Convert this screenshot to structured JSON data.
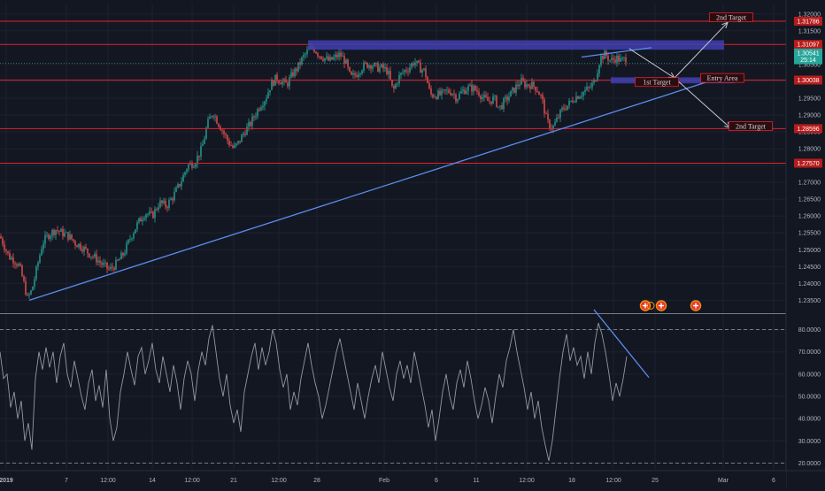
{
  "chart_data": [
    {
      "type": "candlestick",
      "ylim": [
        1.232,
        1.322
      ],
      "x_ticks": [
        "2019",
        "7",
        "12:00",
        "14",
        "12:00",
        "21",
        "12:00",
        "28",
        "Feb",
        "6",
        "11",
        "12:00",
        "18",
        "12:00",
        "25",
        "Mar",
        "6"
      ],
      "y_ticks": [
        "1.32000",
        "1.31500",
        "1.30500",
        "1.30000",
        "1.29500",
        "1.29000",
        "1.28500",
        "1.28000",
        "1.27500",
        "1.27000",
        "1.26500",
        "1.26000",
        "1.25500",
        "1.25000",
        "1.24500",
        "1.24000",
        "1.23500"
      ],
      "current_price": "1.30541",
      "countdown": "25:14",
      "price_path": [
        [
          0,
          1.254
        ],
        [
          5,
          1.251
        ],
        [
          10,
          1.248
        ],
        [
          16,
          1.247
        ],
        [
          22,
          1.245
        ],
        [
          27,
          1.24
        ],
        [
          31,
          1.2355
        ],
        [
          36,
          1.238
        ],
        [
          42,
          1.245
        ],
        [
          48,
          1.252
        ],
        [
          55,
          1.2545
        ],
        [
          63,
          1.256
        ],
        [
          70,
          1.255
        ],
        [
          78,
          1.254
        ],
        [
          85,
          1.252
        ],
        [
          92,
          1.251
        ],
        [
          100,
          1.249
        ],
        [
          108,
          1.2475
        ],
        [
          116,
          1.2455
        ],
        [
          124,
          1.244
        ],
        [
          132,
          1.246
        ],
        [
          140,
          1.249
        ],
        [
          148,
          1.254
        ],
        [
          156,
          1.258
        ],
        [
          164,
          1.261
        ],
        [
          172,
          1.26
        ],
        [
          180,
          1.264
        ],
        [
          188,
          1.263
        ],
        [
          196,
          1.266
        ],
        [
          204,
          1.27
        ],
        [
          212,
          1.275
        ],
        [
          220,
          1.276
        ],
        [
          228,
          1.28
        ],
        [
          234,
          1.287
        ],
        [
          240,
          1.291
        ],
        [
          246,
          1.288
        ],
        [
          252,
          1.285
        ],
        [
          258,
          1.282
        ],
        [
          264,
          1.28
        ],
        [
          270,
          1.282
        ],
        [
          276,
          1.285
        ],
        [
          282,
          1.287
        ],
        [
          288,
          1.29
        ],
        [
          294,
          1.293
        ],
        [
          300,
          1.295
        ],
        [
          306,
          1.299
        ],
        [
          312,
          1.301
        ],
        [
          318,
          1.3
        ],
        [
          324,
          1.299
        ],
        [
          330,
          1.302
        ],
        [
          336,
          1.304
        ],
        [
          342,
          1.307
        ],
        [
          348,
          1.309
        ],
        [
          354,
          1.31
        ],
        [
          360,
          1.308
        ],
        [
          366,
          1.307
        ],
        [
          372,
          1.306
        ],
        [
          378,
          1.307
        ],
        [
          384,
          1.308
        ],
        [
          390,
          1.306
        ],
        [
          396,
          1.301
        ],
        [
          402,
          1.302
        ],
        [
          408,
          1.304
        ],
        [
          414,
          1.305
        ],
        [
          420,
          1.305
        ],
        [
          426,
          1.304
        ],
        [
          432,
          1.304
        ],
        [
          438,
          1.303
        ],
        [
          444,
          1.297
        ],
        [
          450,
          1.301
        ],
        [
          456,
          1.303
        ],
        [
          462,
          1.304
        ],
        [
          468,
          1.306
        ],
        [
          474,
          1.304
        ],
        [
          480,
          1.303
        ],
        [
          486,
          1.296
        ],
        [
          492,
          1.296
        ],
        [
          498,
          1.296
        ],
        [
          504,
          1.297
        ],
        [
          510,
          1.297
        ],
        [
          516,
          1.295
        ],
        [
          522,
          1.297
        ],
        [
          528,
          1.298
        ],
        [
          534,
          1.298
        ],
        [
          540,
          1.297
        ],
        [
          546,
          1.295
        ],
        [
          552,
          1.294
        ],
        [
          558,
          1.295
        ],
        [
          564,
          1.292
        ],
        [
          570,
          1.294
        ],
        [
          576,
          1.296
        ],
        [
          582,
          1.298
        ],
        [
          588,
          1.3
        ],
        [
          594,
          1.299
        ],
        [
          600,
          1.299
        ],
        [
          606,
          1.298
        ],
        [
          612,
          1.295
        ],
        [
          618,
          1.288
        ],
        [
          624,
          1.286
        ],
        [
          630,
          1.289
        ],
        [
          636,
          1.292
        ],
        [
          642,
          1.293
        ],
        [
          648,
          1.295
        ],
        [
          654,
          1.296
        ],
        [
          660,
          1.297
        ],
        [
          666,
          1.298
        ],
        [
          672,
          1.3
        ],
        [
          678,
          1.307
        ],
        [
          684,
          1.308
        ],
        [
          690,
          1.306
        ],
        [
          696,
          1.307
        ],
        [
          702,
          1.306
        ],
        [
          708,
          1.307
        ]
      ],
      "osc_path": [
        [
          0,
          70
        ],
        [
          4,
          58
        ],
        [
          8,
          60
        ],
        [
          12,
          45
        ],
        [
          16,
          52
        ],
        [
          20,
          40
        ],
        [
          24,
          48
        ],
        [
          28,
          30
        ],
        [
          32,
          38
        ],
        [
          36,
          26
        ],
        [
          40,
          58
        ],
        [
          44,
          70
        ],
        [
          48,
          62
        ],
        [
          52,
          72
        ],
        [
          56,
          63
        ],
        [
          60,
          70
        ],
        [
          64,
          56
        ],
        [
          68,
          68
        ],
        [
          72,
          74
        ],
        [
          76,
          60
        ],
        [
          80,
          54
        ],
        [
          84,
          66
        ],
        [
          88,
          58
        ],
        [
          92,
          50
        ],
        [
          96,
          44
        ],
        [
          100,
          56
        ],
        [
          104,
          62
        ],
        [
          108,
          48
        ],
        [
          112,
          55
        ],
        [
          116,
          45
        ],
        [
          120,
          62
        ],
        [
          124,
          40
        ],
        [
          128,
          30
        ],
        [
          132,
          36
        ],
        [
          136,
          52
        ],
        [
          140,
          60
        ],
        [
          144,
          70
        ],
        [
          148,
          62
        ],
        [
          152,
          55
        ],
        [
          156,
          68
        ],
        [
          160,
          72
        ],
        [
          164,
          60
        ],
        [
          168,
          66
        ],
        [
          172,
          74
        ],
        [
          176,
          62
        ],
        [
          180,
          56
        ],
        [
          184,
          68
        ],
        [
          188,
          60
        ],
        [
          192,
          52
        ],
        [
          196,
          64
        ],
        [
          200,
          56
        ],
        [
          204,
          44
        ],
        [
          208,
          58
        ],
        [
          212,
          66
        ],
        [
          216,
          60
        ],
        [
          220,
          48
        ],
        [
          224,
          62
        ],
        [
          228,
          70
        ],
        [
          232,
          64
        ],
        [
          236,
          76
        ],
        [
          240,
          82
        ],
        [
          244,
          70
        ],
        [
          248,
          58
        ],
        [
          252,
          50
        ],
        [
          256,
          60
        ],
        [
          260,
          46
        ],
        [
          264,
          38
        ],
        [
          268,
          44
        ],
        [
          272,
          34
        ],
        [
          276,
          52
        ],
        [
          280,
          60
        ],
        [
          284,
          68
        ],
        [
          288,
          74
        ],
        [
          292,
          62
        ],
        [
          296,
          72
        ],
        [
          300,
          64
        ],
        [
          304,
          70
        ],
        [
          308,
          80
        ],
        [
          312,
          74
        ],
        [
          316,
          62
        ],
        [
          320,
          54
        ],
        [
          324,
          60
        ],
        [
          328,
          44
        ],
        [
          332,
          52
        ],
        [
          336,
          46
        ],
        [
          340,
          58
        ],
        [
          344,
          66
        ],
        [
          348,
          74
        ],
        [
          352,
          64
        ],
        [
          356,
          56
        ],
        [
          360,
          50
        ],
        [
          364,
          40
        ],
        [
          368,
          46
        ],
        [
          372,
          54
        ],
        [
          376,
          62
        ],
        [
          380,
          70
        ],
        [
          384,
          76
        ],
        [
          388,
          68
        ],
        [
          392,
          60
        ],
        [
          396,
          52
        ],
        [
          400,
          44
        ],
        [
          404,
          56
        ],
        [
          408,
          48
        ],
        [
          412,
          40
        ],
        [
          416,
          50
        ],
        [
          420,
          58
        ],
        [
          424,
          64
        ],
        [
          428,
          56
        ],
        [
          432,
          70
        ],
        [
          436,
          62
        ],
        [
          440,
          54
        ],
        [
          444,
          48
        ],
        [
          448,
          60
        ],
        [
          452,
          66
        ],
        [
          456,
          58
        ],
        [
          460,
          64
        ],
        [
          464,
          56
        ],
        [
          468,
          70
        ],
        [
          472,
          62
        ],
        [
          476,
          54
        ],
        [
          480,
          46
        ],
        [
          484,
          36
        ],
        [
          488,
          44
        ],
        [
          492,
          30
        ],
        [
          496,
          40
        ],
        [
          500,
          52
        ],
        [
          504,
          60
        ],
        [
          508,
          50
        ],
        [
          512,
          44
        ],
        [
          516,
          56
        ],
        [
          520,
          62
        ],
        [
          524,
          54
        ],
        [
          528,
          66
        ],
        [
          532,
          58
        ],
        [
          536,
          48
        ],
        [
          540,
          40
        ],
        [
          544,
          46
        ],
        [
          548,
          54
        ],
        [
          552,
          48
        ],
        [
          556,
          38
        ],
        [
          560,
          50
        ],
        [
          564,
          60
        ],
        [
          568,
          54
        ],
        [
          572,
          66
        ],
        [
          576,
          72
        ],
        [
          580,
          80
        ],
        [
          584,
          70
        ],
        [
          588,
          62
        ],
        [
          592,
          54
        ],
        [
          596,
          44
        ],
        [
          600,
          52
        ],
        [
          604,
          40
        ],
        [
          608,
          48
        ],
        [
          612,
          36
        ],
        [
          616,
          28
        ],
        [
          620,
          21
        ],
        [
          624,
          30
        ],
        [
          628,
          44
        ],
        [
          632,
          58
        ],
        [
          636,
          70
        ],
        [
          640,
          78
        ],
        [
          644,
          66
        ],
        [
          648,
          72
        ],
        [
          652,
          64
        ],
        [
          656,
          68
        ],
        [
          660,
          58
        ],
        [
          664,
          70
        ],
        [
          668,
          60
        ],
        [
          672,
          74
        ],
        [
          676,
          83
        ],
        [
          680,
          78
        ],
        [
          684,
          70
        ],
        [
          688,
          60
        ],
        [
          692,
          48
        ],
        [
          696,
          56
        ],
        [
          700,
          50
        ],
        [
          704,
          58
        ],
        [
          708,
          68
        ]
      ],
      "levels": [
        {
          "value": 1.31786,
          "label": "1.31786"
        },
        {
          "value": 1.31097,
          "label": "1.31097"
        },
        {
          "value": 1.30038,
          "label": "1.30038"
        },
        {
          "value": 1.28596,
          "label": "1.28596"
        },
        {
          "value": 1.2757,
          "label": "1.27570"
        }
      ],
      "annotations": [
        "2nd Target",
        "1st Target",
        "Entry Area",
        "2nd Target"
      ],
      "colors": {
        "up": "#26a69a",
        "down": "#ef5350",
        "level": "#e0232b",
        "trend": "#5b8def",
        "zone": "#3f3fb0",
        "osc": "#9598a1"
      }
    },
    {
      "type": "line",
      "ylim": [
        17,
        88
      ],
      "y_ticks": [
        "80.0000",
        "70.0000",
        "60.0000",
        "50.0000",
        "40.0000",
        "30.0000",
        "20.0000"
      ]
    }
  ]
}
